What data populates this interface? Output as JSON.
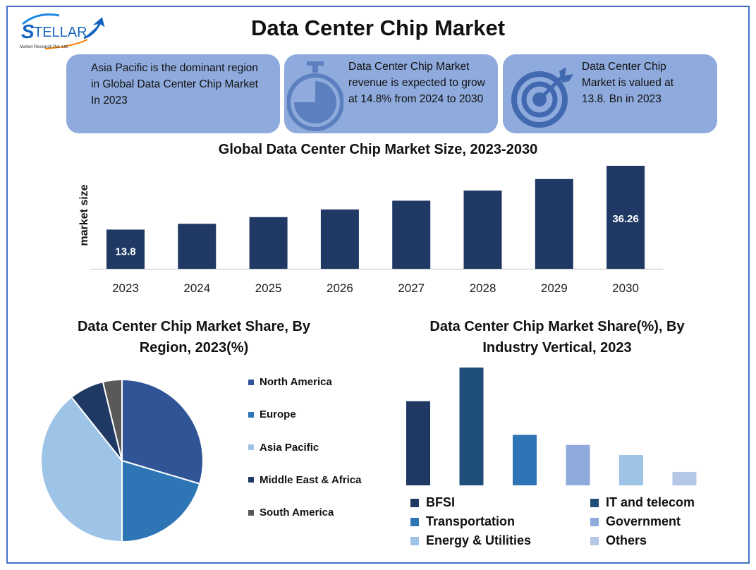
{
  "logo": {
    "brand": "STELLAR",
    "tagline": "Market Research Pvt. Ltd."
  },
  "title": "Data Center Chip Market",
  "cards": [
    {
      "icon": "globe-icon",
      "lines": [
        "Asia Pacific is the dominant region",
        "in Global Data Center Chip Market",
        "In 2023"
      ]
    },
    {
      "icon": "stopwatch-icon",
      "lines": [
        "Data Center Chip Market",
        "revenue is expected to grow",
        "at 14.8% from 2024 to 2030"
      ]
    },
    {
      "icon": "target-icon",
      "lines": [
        "Data Center Chip",
        "Market is valued at",
        "13.8. Bn in 2023"
      ]
    }
  ],
  "colors": {
    "accent": "#4472C4",
    "card": "#8FAADC",
    "bar": "#1F3864"
  },
  "chart_data": [
    {
      "type": "bar",
      "title": "Global Data Center Chip Market Size, 2023-2030",
      "xlabel": "",
      "ylabel": "market size",
      "categories": [
        "2023",
        "2024",
        "2025",
        "2026",
        "2027",
        "2028",
        "2029",
        "2030"
      ],
      "values": [
        13.8,
        15.84,
        18.19,
        20.88,
        23.97,
        27.52,
        31.59,
        36.26
      ],
      "data_labels": {
        "2023": "13.8",
        "2030": "36.26"
      },
      "color": "#1F3864",
      "grid": false
    },
    {
      "type": "pie",
      "title": "Data Center Chip Market Share, By Region, 2023(%)",
      "legend": "right",
      "labels": [
        "North America",
        "Europe",
        "Asia Pacific",
        "Middle East & Africa",
        "South America"
      ],
      "values": [
        29.6,
        20.4,
        39.3,
        6.9,
        3.8
      ],
      "colors": [
        "#2F5597",
        "#2E75B6",
        "#9DC3E6",
        "#1F3864",
        "#595959"
      ]
    },
    {
      "type": "bar",
      "title": "Data Center Chip Market Share(%), By Industry Vertical, 2023",
      "legend": "bottom",
      "categories": [
        "BFSI",
        "IT and telecom",
        "Transportation",
        "Government",
        "Energy & Utilities",
        "Others"
      ],
      "values": [
        25,
        35,
        15,
        12,
        9,
        4
      ],
      "colors": [
        "#1F3864",
        "#1F4E79",
        "#2E75B6",
        "#8FAADC",
        "#9DC3E6",
        "#B4C7E7"
      ]
    }
  ]
}
